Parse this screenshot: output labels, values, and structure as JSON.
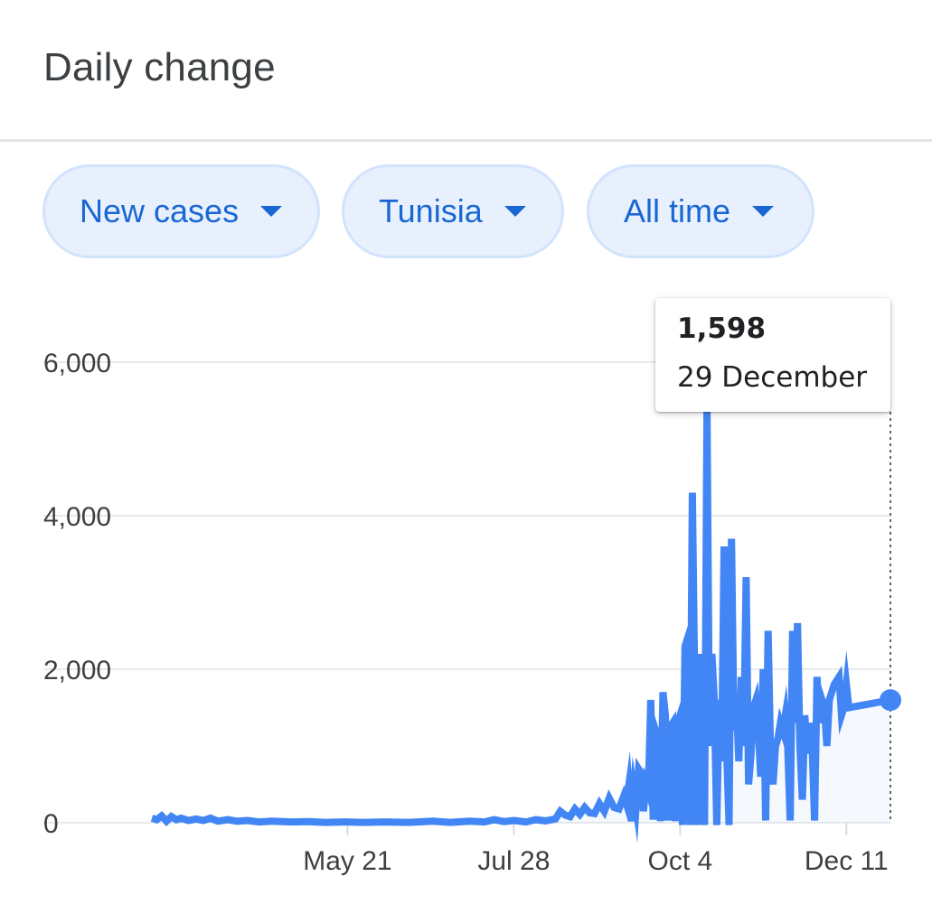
{
  "header": {
    "title": "Daily change"
  },
  "filters": {
    "metric": "New cases",
    "region": "Tunisia",
    "period": "All time"
  },
  "colors": {
    "line": "#4285f4",
    "accent": "#1967d2",
    "chip_bg": "#e8f0fe",
    "grid": "#e8eaed"
  },
  "tooltip": {
    "value": "1,598",
    "date": "29 December"
  },
  "chart_data": {
    "type": "line",
    "title": "Daily change",
    "xlabel": "",
    "ylabel": "",
    "ylim": [
      0,
      6000
    ],
    "yticks": [
      0,
      2000,
      4000,
      6000
    ],
    "ytick_labels": [
      "0",
      "2,000",
      "4,000",
      "6,000"
    ],
    "xlim": [
      "2020-03-02",
      "2020-12-29"
    ],
    "xticks": [
      "2020-05-21",
      "2020-07-28",
      "2020-10-04",
      "2020-12-11"
    ],
    "xtick_labels": [
      "May 21",
      "Jul 28",
      "Oct 4",
      "Dec 11"
    ],
    "grid": true,
    "highlight": {
      "x": "2020-12-29",
      "y": 1598
    },
    "series": [
      {
        "points": [
          [
            "2020-03-02",
            60
          ],
          [
            "2020-03-04",
            40
          ],
          [
            "2020-03-06",
            90
          ],
          [
            "2020-03-08",
            20
          ],
          [
            "2020-03-10",
            80
          ],
          [
            "2020-03-12",
            40
          ],
          [
            "2020-03-14",
            60
          ],
          [
            "2020-03-17",
            30
          ],
          [
            "2020-03-20",
            50
          ],
          [
            "2020-03-23",
            30
          ],
          [
            "2020-03-26",
            60
          ],
          [
            "2020-03-29",
            20
          ],
          [
            "2020-04-02",
            40
          ],
          [
            "2020-04-06",
            20
          ],
          [
            "2020-04-10",
            30
          ],
          [
            "2020-04-15",
            10
          ],
          [
            "2020-04-20",
            20
          ],
          [
            "2020-04-28",
            10
          ],
          [
            "2020-05-05",
            15
          ],
          [
            "2020-05-12",
            5
          ],
          [
            "2020-05-20",
            10
          ],
          [
            "2020-05-28",
            5
          ],
          [
            "2020-06-05",
            10
          ],
          [
            "2020-06-15",
            5
          ],
          [
            "2020-06-25",
            20
          ],
          [
            "2020-07-02",
            5
          ],
          [
            "2020-07-10",
            20
          ],
          [
            "2020-07-16",
            10
          ],
          [
            "2020-07-20",
            40
          ],
          [
            "2020-07-24",
            15
          ],
          [
            "2020-07-28",
            30
          ],
          [
            "2020-08-02",
            10
          ],
          [
            "2020-08-06",
            40
          ],
          [
            "2020-08-10",
            25
          ],
          [
            "2020-08-14",
            50
          ],
          [
            "2020-08-16",
            150
          ],
          [
            "2020-08-18",
            100
          ],
          [
            "2020-08-20",
            80
          ],
          [
            "2020-08-22",
            180
          ],
          [
            "2020-08-24",
            110
          ],
          [
            "2020-08-26",
            200
          ],
          [
            "2020-08-28",
            130
          ],
          [
            "2020-08-30",
            120
          ],
          [
            "2020-09-01",
            250
          ],
          [
            "2020-09-03",
            150
          ],
          [
            "2020-09-05",
            320
          ],
          [
            "2020-09-07",
            200
          ],
          [
            "2020-09-09",
            180
          ],
          [
            "2020-09-11",
            350
          ],
          [
            "2020-09-12",
            250
          ],
          [
            "2020-09-13",
            480
          ],
          [
            "2020-09-14",
            20
          ],
          [
            "2020-09-15",
            430
          ],
          [
            "2020-09-16",
            200
          ],
          [
            "2020-09-17",
            700
          ],
          [
            "2020-09-18",
            650
          ],
          [
            "2020-09-19",
            150
          ],
          [
            "2020-09-20",
            500
          ],
          [
            "2020-09-21",
            400
          ],
          [
            "2020-09-22",
            1600
          ],
          [
            "2020-09-23",
            40
          ],
          [
            "2020-09-24",
            1200
          ],
          [
            "2020-09-25",
            1100
          ],
          [
            "2020-09-26",
            20
          ],
          [
            "2020-09-27",
            1700
          ],
          [
            "2020-09-28",
            1400
          ],
          [
            "2020-09-29",
            30
          ],
          [
            "2020-09-30",
            1250
          ],
          [
            "2020-10-01",
            1300
          ],
          [
            "2020-10-02",
            20
          ],
          [
            "2020-10-03",
            1300
          ],
          [
            "2020-10-04",
            1400
          ],
          [
            "2020-10-05",
            -30
          ],
          [
            "2020-10-06",
            2300
          ],
          [
            "2020-10-07",
            2400
          ],
          [
            "2020-10-08",
            -30
          ],
          [
            "2020-10-09",
            4300
          ],
          [
            "2020-10-10",
            1700
          ],
          [
            "2020-10-11",
            -30
          ],
          [
            "2020-10-12",
            2200
          ],
          [
            "2020-10-13",
            1500
          ],
          [
            "2020-10-14",
            -30
          ],
          [
            "2020-10-15",
            5400
          ],
          [
            "2020-10-16",
            1000
          ],
          [
            "2020-10-17",
            2200
          ],
          [
            "2020-10-18",
            1600
          ],
          [
            "2020-10-19",
            -30
          ],
          [
            "2020-10-20",
            1600
          ],
          [
            "2020-10-21",
            800
          ],
          [
            "2020-10-22",
            3600
          ],
          [
            "2020-10-23",
            1000
          ],
          [
            "2020-10-24",
            -30
          ],
          [
            "2020-10-25",
            3700
          ],
          [
            "2020-10-26",
            1200
          ],
          [
            "2020-10-27",
            1600
          ],
          [
            "2020-10-28",
            800
          ],
          [
            "2020-10-29",
            1900
          ],
          [
            "2020-10-30",
            1000
          ],
          [
            "2020-10-31",
            3200
          ],
          [
            "2020-11-01",
            500
          ],
          [
            "2020-11-02",
            900
          ],
          [
            "2020-11-03",
            1500
          ],
          [
            "2020-11-04",
            1600
          ],
          [
            "2020-11-05",
            1200
          ],
          [
            "2020-11-06",
            600
          ],
          [
            "2020-11-07",
            2000
          ],
          [
            "2020-11-08",
            30
          ],
          [
            "2020-11-09",
            2500
          ],
          [
            "2020-11-10",
            900
          ],
          [
            "2020-11-11",
            500
          ],
          [
            "2020-11-12",
            1000
          ],
          [
            "2020-11-13",
            1100
          ],
          [
            "2020-11-14",
            1300
          ],
          [
            "2020-11-15",
            1200
          ],
          [
            "2020-11-16",
            1400
          ],
          [
            "2020-11-17",
            1000
          ],
          [
            "2020-11-18",
            30
          ],
          [
            "2020-11-19",
            2500
          ],
          [
            "2020-11-20",
            1300
          ],
          [
            "2020-11-21",
            2600
          ],
          [
            "2020-11-22",
            1000
          ],
          [
            "2020-11-23",
            300
          ],
          [
            "2020-11-24",
            1400
          ],
          [
            "2020-11-25",
            900
          ],
          [
            "2020-11-26",
            1300
          ],
          [
            "2020-11-27",
            1000
          ],
          [
            "2020-11-28",
            30
          ],
          [
            "2020-11-29",
            1900
          ],
          [
            "2020-11-30",
            1300
          ],
          [
            "2020-12-01",
            1600
          ],
          [
            "2020-12-02",
            1500
          ],
          [
            "2020-12-03",
            1000
          ],
          [
            "2020-12-04",
            1600
          ],
          [
            "2020-12-06",
            1800
          ],
          [
            "2020-12-08",
            1900
          ],
          [
            "2020-12-09",
            1400
          ],
          [
            "2020-12-10",
            1500
          ],
          [
            "2020-12-11",
            1800
          ],
          [
            "2020-12-12",
            1500
          ],
          [
            "2020-12-29",
            1598
          ]
        ]
      }
    ]
  }
}
